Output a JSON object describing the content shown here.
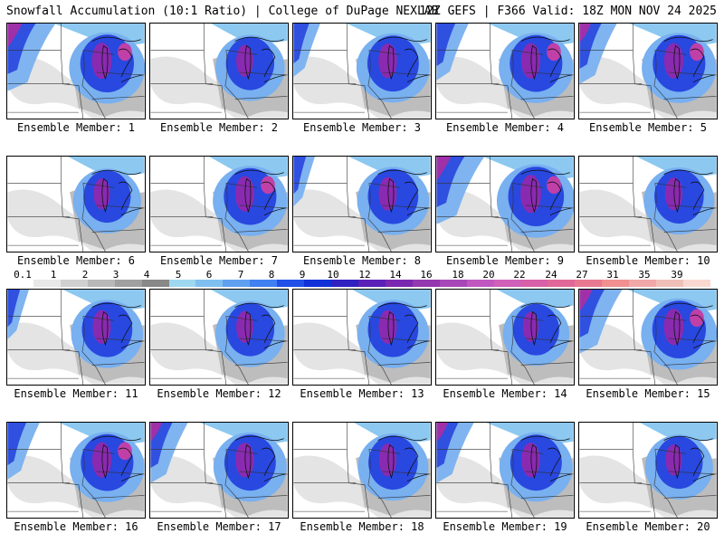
{
  "header": {
    "title": "Snowfall Accumulation (10:1 Ratio) | College of DuPage NEXLAB",
    "run_info": "12Z GEFS | F366 Valid: 18Z MON NOV 24 2025"
  },
  "members": [
    {
      "label": "Ensemble Member: 1",
      "intensity": 0.85,
      "west": 0.9
    },
    {
      "label": "Ensemble Member: 2",
      "intensity": 0.6,
      "west": 0.1
    },
    {
      "label": "Ensemble Member: 3",
      "intensity": 0.75,
      "west": 0.5
    },
    {
      "label": "Ensemble Member: 4",
      "intensity": 0.8,
      "west": 0.6
    },
    {
      "label": "Ensemble Member: 5",
      "intensity": 0.8,
      "west": 0.7
    },
    {
      "label": "Ensemble Member: 6",
      "intensity": 0.55,
      "west": 0.1
    },
    {
      "label": "Ensemble Member: 7",
      "intensity": 0.8,
      "west": 0.2
    },
    {
      "label": "Ensemble Member: 8",
      "intensity": 0.7,
      "west": 0.4
    },
    {
      "label": "Ensemble Member: 9",
      "intensity": 0.95,
      "west": 0.9
    },
    {
      "label": "Ensemble Member: 10",
      "intensity": 0.65,
      "west": 0.3
    },
    {
      "label": "Ensemble Member: 11",
      "intensity": 0.7,
      "west": 0.4
    },
    {
      "label": "Ensemble Member: 12",
      "intensity": 0.6,
      "west": 0.1
    },
    {
      "label": "Ensemble Member: 13",
      "intensity": 0.7,
      "west": 0.2
    },
    {
      "label": "Ensemble Member: 14",
      "intensity": 0.5,
      "west": 0.1
    },
    {
      "label": "Ensemble Member: 15",
      "intensity": 0.85,
      "west": 0.8
    },
    {
      "label": "Ensemble Member: 16",
      "intensity": 0.8,
      "west": 0.6
    },
    {
      "label": "Ensemble Member: 17",
      "intensity": 0.75,
      "west": 0.7
    },
    {
      "label": "Ensemble Member: 18",
      "intensity": 0.65,
      "west": 0.1
    },
    {
      "label": "Ensemble Member: 19",
      "intensity": 0.75,
      "west": 0.7
    },
    {
      "label": "Ensemble Member: 20",
      "intensity": 0.55,
      "west": 0.1
    }
  ],
  "colorbar": {
    "labels": [
      "0.1",
      "1",
      "2",
      "3",
      "4",
      "5",
      "6",
      "7",
      "8",
      "9",
      "10",
      "12",
      "14",
      "16",
      "18",
      "20",
      "22",
      "24",
      "27",
      "31",
      "35",
      "39"
    ],
    "colors": [
      "#ffffff",
      "#e8e8e8",
      "#d0d0d0",
      "#b8b8b8",
      "#a0a0a0",
      "#888888",
      "#9ed8f0",
      "#80c0f0",
      "#60a0f0",
      "#4080f0",
      "#2050e8",
      "#1030d8",
      "#3020c0",
      "#5a20b8",
      "#7a28b0",
      "#9438b0",
      "#a848b8",
      "#c058c0",
      "#d060b8",
      "#d860a8",
      "#e06898",
      "#e87890",
      "#f09090",
      "#f0a8a8",
      "#f0c0b8",
      "#f8d8d0"
    ]
  }
}
